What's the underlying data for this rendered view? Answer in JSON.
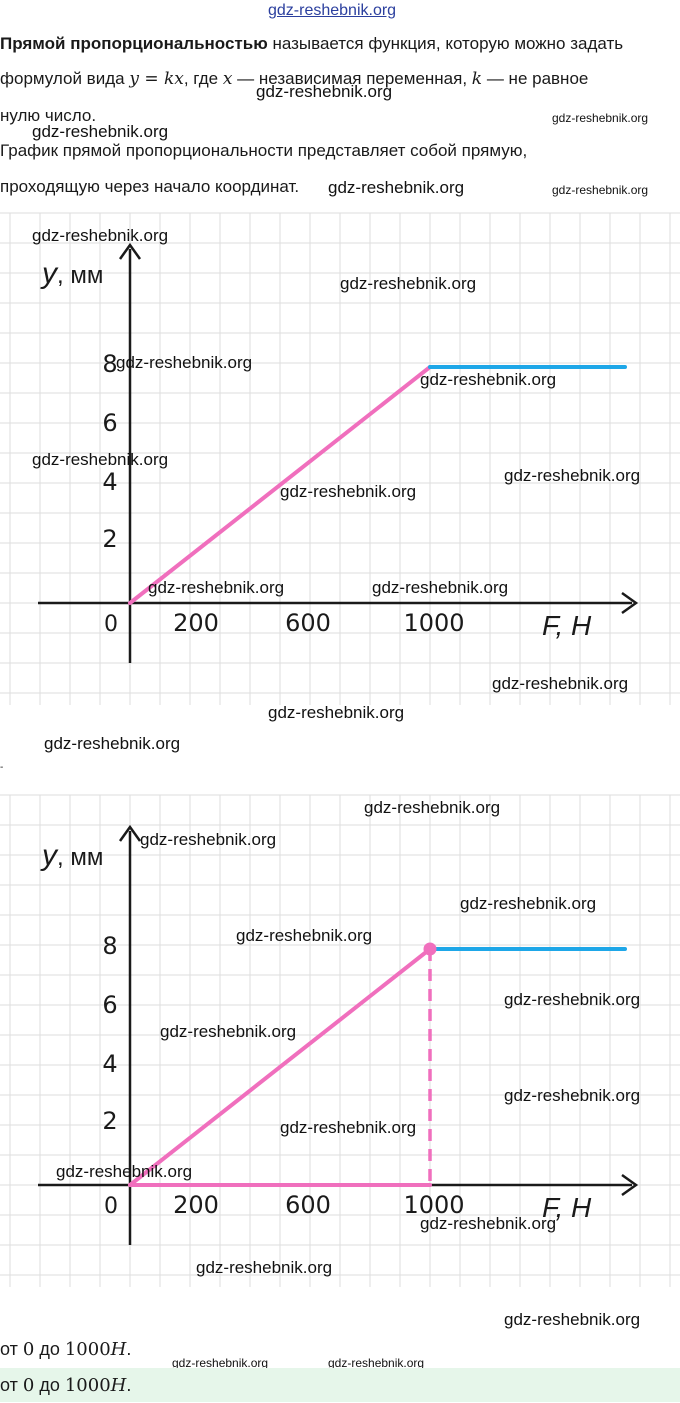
{
  "intro": {
    "term": "Прямой пропорциональностью",
    "line1_rest": " называется функция, которую можно задать",
    "line2_a": "формулой вида ",
    "formula": "y = kx",
    "line2_b": ", где ",
    "var_x": "x",
    "line2_c": " — независимая переменная, ",
    "var_k": "k",
    "line2_d": " — не равное",
    "line3": "нулю число.",
    "line4": "График прямой пропорциональности представляет собой прямую,",
    "line5": "проходящую через начало координат."
  },
  "separator": "-",
  "watermark": "gdz-reshebnik.org",
  "chart_data": [
    {
      "type": "line",
      "ylabel_var": "y",
      "ylabel_unit": ", мм",
      "xlabel_var": "F",
      "xlabel_unit": ", Н",
      "origin_label": "0",
      "x_ticks": [
        "200",
        "600",
        "1000"
      ],
      "y_ticks": [
        "2",
        "4",
        "6",
        "8"
      ],
      "xlim": [
        0,
        1700
      ],
      "ylim": [
        0,
        11
      ],
      "grid": true,
      "series": [
        {
          "color": "#f06fbd",
          "x": [
            0,
            1000
          ],
          "y": [
            0,
            8
          ]
        },
        {
          "color": "#1ea7e8",
          "x": [
            1000,
            1650
          ],
          "y": [
            8,
            8
          ]
        }
      ]
    },
    {
      "type": "line",
      "ylabel_var": "y",
      "ylabel_unit": ", мм",
      "xlabel_var": "F",
      "xlabel_unit": ", Н",
      "origin_label": "0",
      "x_ticks": [
        "200",
        "600",
        "1000"
      ],
      "y_ticks": [
        "2",
        "4",
        "6",
        "8"
      ],
      "xlim": [
        0,
        1700
      ],
      "ylim": [
        0,
        11
      ],
      "grid": true,
      "series": [
        {
          "color": "#f06fbd",
          "x": [
            0,
            1000
          ],
          "y": [
            0,
            8
          ]
        },
        {
          "color": "#1ea7e8",
          "x": [
            1000,
            1650
          ],
          "y": [
            8,
            8
          ]
        },
        {
          "color": "#f06fbd",
          "x": [
            0,
            1000
          ],
          "y": [
            0,
            0
          ]
        }
      ],
      "marker": {
        "x": 1000,
        "y": 8,
        "color": "#f06fbd"
      },
      "dashed_drop": {
        "x": 1000,
        "y_from": 0,
        "y_to": 8,
        "color": "#f06fbd"
      }
    }
  ],
  "footer": {
    "line1_prefix": "от ",
    "from": "0",
    "mid": " до ",
    "to": "1000",
    "unit": "H",
    "end": "."
  }
}
